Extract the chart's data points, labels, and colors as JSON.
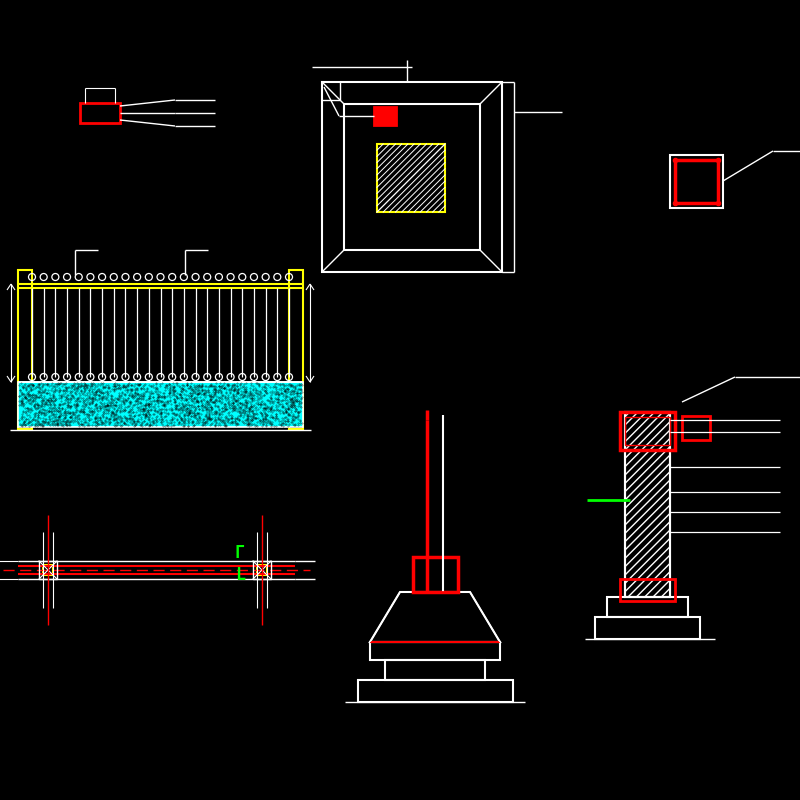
{
  "bg_color": "#000000",
  "white": "#ffffff",
  "red": "#ff0000",
  "yellow": "#ffff00",
  "cyan": "#00ffff",
  "green": "#00ff00",
  "fig_width": 8.0,
  "fig_height": 8.0,
  "dpi": 100
}
